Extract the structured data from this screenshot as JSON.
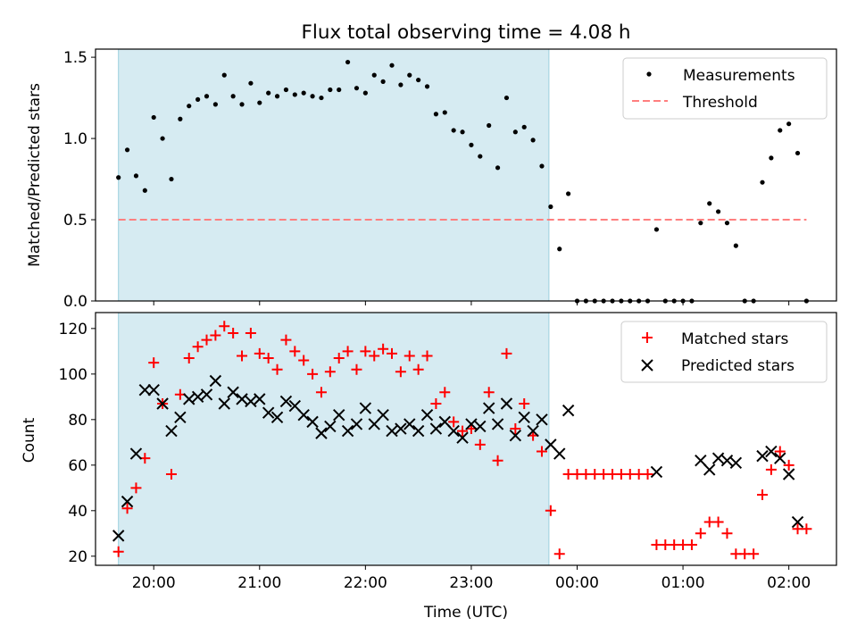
{
  "title": "Flux total observing time = 4.08 h",
  "xlabel": "Time (UTC)",
  "shaded_span": {
    "start": "19:40",
    "end": "23:44",
    "color": "#add8e6"
  },
  "chart_data": [
    {
      "type": "scatter",
      "ylabel": "Matched/Predicted stars",
      "xlim": [
        "19:27",
        "02:27"
      ],
      "ylim": [
        0,
        1.55
      ],
      "yticks": [
        0.0,
        0.5,
        1.0,
        1.5
      ],
      "ytick_labels": [
        "0.0",
        "0.5",
        "1.0",
        "1.5"
      ],
      "legend_position": "upper right",
      "series": [
        {
          "name": "Measurements",
          "marker": "dot",
          "color": "#000000",
          "points": [
            [
              "19:40",
              0.76
            ],
            [
              "19:45",
              0.93
            ],
            [
              "19:50",
              0.77
            ],
            [
              "19:55",
              0.68
            ],
            [
              "20:00",
              1.13
            ],
            [
              "20:05",
              1.0
            ],
            [
              "20:10",
              0.75
            ],
            [
              "20:15",
              1.12
            ],
            [
              "20:20",
              1.2
            ],
            [
              "20:25",
              1.24
            ],
            [
              "20:30",
              1.26
            ],
            [
              "20:35",
              1.21
            ],
            [
              "20:40",
              1.39
            ],
            [
              "20:45",
              1.26
            ],
            [
              "20:50",
              1.21
            ],
            [
              "20:55",
              1.34
            ],
            [
              "21:00",
              1.22
            ],
            [
              "21:05",
              1.28
            ],
            [
              "21:10",
              1.26
            ],
            [
              "21:15",
              1.3
            ],
            [
              "21:20",
              1.27
            ],
            [
              "21:25",
              1.28
            ],
            [
              "21:30",
              1.26
            ],
            [
              "21:35",
              1.25
            ],
            [
              "21:40",
              1.3
            ],
            [
              "21:45",
              1.3
            ],
            [
              "21:50",
              1.47
            ],
            [
              "21:55",
              1.31
            ],
            [
              "22:00",
              1.28
            ],
            [
              "22:05",
              1.39
            ],
            [
              "22:10",
              1.35
            ],
            [
              "22:15",
              1.45
            ],
            [
              "22:20",
              1.33
            ],
            [
              "22:25",
              1.39
            ],
            [
              "22:30",
              1.36
            ],
            [
              "22:35",
              1.32
            ],
            [
              "22:40",
              1.15
            ],
            [
              "22:45",
              1.16
            ],
            [
              "22:50",
              1.05
            ],
            [
              "22:55",
              1.04
            ],
            [
              "23:00",
              0.96
            ],
            [
              "23:05",
              0.89
            ],
            [
              "23:10",
              1.08
            ],
            [
              "23:15",
              0.82
            ],
            [
              "23:20",
              1.25
            ],
            [
              "23:25",
              1.04
            ],
            [
              "23:30",
              1.07
            ],
            [
              "23:35",
              0.99
            ],
            [
              "23:40",
              0.83
            ],
            [
              "23:45",
              0.58
            ],
            [
              "23:50",
              0.32
            ],
            [
              "23:55",
              0.66
            ],
            [
              "00:00",
              0.0
            ],
            [
              "00:05",
              0.0
            ],
            [
              "00:10",
              0.0
            ],
            [
              "00:15",
              0.0
            ],
            [
              "00:20",
              0.0
            ],
            [
              "00:25",
              0.0
            ],
            [
              "00:30",
              0.0
            ],
            [
              "00:35",
              0.0
            ],
            [
              "00:40",
              0.0
            ],
            [
              "00:45",
              0.44
            ],
            [
              "00:50",
              0.0
            ],
            [
              "00:55",
              0.0
            ],
            [
              "01:00",
              0.0
            ],
            [
              "01:05",
              0.0
            ],
            [
              "01:10",
              0.48
            ],
            [
              "01:15",
              0.6
            ],
            [
              "01:20",
              0.55
            ],
            [
              "01:25",
              0.48
            ],
            [
              "01:30",
              0.34
            ],
            [
              "01:35",
              0.0
            ],
            [
              "01:40",
              0.0
            ],
            [
              "01:45",
              0.73
            ],
            [
              "01:50",
              0.88
            ],
            [
              "01:55",
              1.05
            ],
            [
              "02:00",
              1.09
            ],
            [
              "02:05",
              0.91
            ],
            [
              "02:10",
              0.0
            ]
          ]
        },
        {
          "name": "Threshold",
          "marker": "dashed-line",
          "color": "#ff7f7f",
          "value": 0.5,
          "x_range": [
            "19:40",
            "02:10"
          ]
        }
      ]
    },
    {
      "type": "scatter",
      "ylabel": "Count",
      "xlim": [
        "19:27",
        "02:27"
      ],
      "ylim": [
        16,
        127
      ],
      "yticks": [
        20,
        40,
        60,
        80,
        100,
        120
      ],
      "ytick_labels": [
        "20",
        "40",
        "60",
        "80",
        "100",
        "120"
      ],
      "xticks": [
        "20:00",
        "21:00",
        "22:00",
        "23:00",
        "00:00",
        "01:00",
        "02:00"
      ],
      "legend_position": "upper right",
      "series": [
        {
          "name": "Matched stars",
          "marker": "plus",
          "color": "#ff0000",
          "points": [
            [
              "19:40",
              22
            ],
            [
              "19:45",
              41
            ],
            [
              "19:50",
              50
            ],
            [
              "19:55",
              63
            ],
            [
              "20:00",
              105
            ],
            [
              "20:05",
              87
            ],
            [
              "20:10",
              56
            ],
            [
              "20:15",
              91
            ],
            [
              "20:20",
              107
            ],
            [
              "20:25",
              112
            ],
            [
              "20:30",
              115
            ],
            [
              "20:35",
              117
            ],
            [
              "20:40",
              121
            ],
            [
              "20:45",
              118
            ],
            [
              "20:50",
              108
            ],
            [
              "20:55",
              118
            ],
            [
              "21:00",
              109
            ],
            [
              "21:05",
              107
            ],
            [
              "21:10",
              102
            ],
            [
              "21:15",
              115
            ],
            [
              "21:20",
              110
            ],
            [
              "21:25",
              106
            ],
            [
              "21:30",
              100
            ],
            [
              "21:35",
              92
            ],
            [
              "21:40",
              101
            ],
            [
              "21:45",
              107
            ],
            [
              "21:50",
              110
            ],
            [
              "21:55",
              102
            ],
            [
              "22:00",
              110
            ],
            [
              "22:05",
              108
            ],
            [
              "22:10",
              111
            ],
            [
              "22:15",
              109
            ],
            [
              "22:20",
              101
            ],
            [
              "22:25",
              108
            ],
            [
              "22:30",
              102
            ],
            [
              "22:35",
              108
            ],
            [
              "22:40",
              87
            ],
            [
              "22:45",
              92
            ],
            [
              "22:50",
              79
            ],
            [
              "22:55",
              75
            ],
            [
              "23:00",
              76
            ],
            [
              "23:05",
              69
            ],
            [
              "23:10",
              92
            ],
            [
              "23:15",
              62
            ],
            [
              "23:20",
              109
            ],
            [
              "23:25",
              76
            ],
            [
              "23:30",
              87
            ],
            [
              "23:35",
              73
            ],
            [
              "23:40",
              66
            ],
            [
              "23:45",
              40
            ],
            [
              "23:50",
              21
            ],
            [
              "23:55",
              56
            ],
            [
              "00:00",
              56
            ],
            [
              "00:05",
              56
            ],
            [
              "00:10",
              56
            ],
            [
              "00:15",
              56
            ],
            [
              "00:20",
              56
            ],
            [
              "00:25",
              56
            ],
            [
              "00:30",
              56
            ],
            [
              "00:35",
              56
            ],
            [
              "00:40",
              56
            ],
            [
              "00:45",
              25
            ],
            [
              "00:50",
              25
            ],
            [
              "00:55",
              25
            ],
            [
              "01:00",
              25
            ],
            [
              "01:05",
              25
            ],
            [
              "01:10",
              30
            ],
            [
              "01:15",
              35
            ],
            [
              "01:20",
              35
            ],
            [
              "01:25",
              30
            ],
            [
              "01:30",
              21
            ],
            [
              "01:35",
              21
            ],
            [
              "01:40",
              21
            ],
            [
              "01:45",
              47
            ],
            [
              "01:50",
              58
            ],
            [
              "01:55",
              66
            ],
            [
              "02:00",
              60
            ],
            [
              "02:05",
              32
            ],
            [
              "02:10",
              32
            ]
          ]
        },
        {
          "name": "Predicted stars",
          "marker": "x",
          "color": "#000000",
          "points": [
            [
              "19:40",
              29
            ],
            [
              "19:45",
              44
            ],
            [
              "19:50",
              65
            ],
            [
              "19:55",
              93
            ],
            [
              "20:00",
              93
            ],
            [
              "20:05",
              87
            ],
            [
              "20:10",
              75
            ],
            [
              "20:15",
              81
            ],
            [
              "20:20",
              89
            ],
            [
              "20:25",
              90
            ],
            [
              "20:30",
              91
            ],
            [
              "20:35",
              97
            ],
            [
              "20:40",
              87
            ],
            [
              "20:45",
              92
            ],
            [
              "20:50",
              89
            ],
            [
              "20:55",
              88
            ],
            [
              "21:00",
              89
            ],
            [
              "21:05",
              83
            ],
            [
              "21:10",
              81
            ],
            [
              "21:15",
              88
            ],
            [
              "21:20",
              86
            ],
            [
              "21:25",
              82
            ],
            [
              "21:30",
              79
            ],
            [
              "21:35",
              74
            ],
            [
              "21:40",
              77
            ],
            [
              "21:45",
              82
            ],
            [
              "21:50",
              75
            ],
            [
              "21:55",
              78
            ],
            [
              "22:00",
              85
            ],
            [
              "22:05",
              78
            ],
            [
              "22:10",
              82
            ],
            [
              "22:15",
              75
            ],
            [
              "22:20",
              76
            ],
            [
              "22:25",
              78
            ],
            [
              "22:30",
              75
            ],
            [
              "22:35",
              82
            ],
            [
              "22:40",
              76
            ],
            [
              "22:45",
              79
            ],
            [
              "22:50",
              75
            ],
            [
              "22:55",
              72
            ],
            [
              "23:00",
              78
            ],
            [
              "23:05",
              77
            ],
            [
              "23:10",
              85
            ],
            [
              "23:15",
              78
            ],
            [
              "23:20",
              87
            ],
            [
              "23:25",
              73
            ],
            [
              "23:30",
              81
            ],
            [
              "23:35",
              75
            ],
            [
              "23:40",
              80
            ],
            [
              "23:45",
              69
            ],
            [
              "23:50",
              65
            ],
            [
              "23:55",
              84
            ],
            [
              "00:45",
              57
            ],
            [
              "01:10",
              62
            ],
            [
              "01:15",
              58
            ],
            [
              "01:20",
              63
            ],
            [
              "01:25",
              62
            ],
            [
              "01:30",
              61
            ],
            [
              "01:45",
              64
            ],
            [
              "01:50",
              66
            ],
            [
              "01:55",
              63
            ],
            [
              "02:00",
              56
            ],
            [
              "02:05",
              35
            ]
          ]
        }
      ]
    }
  ]
}
